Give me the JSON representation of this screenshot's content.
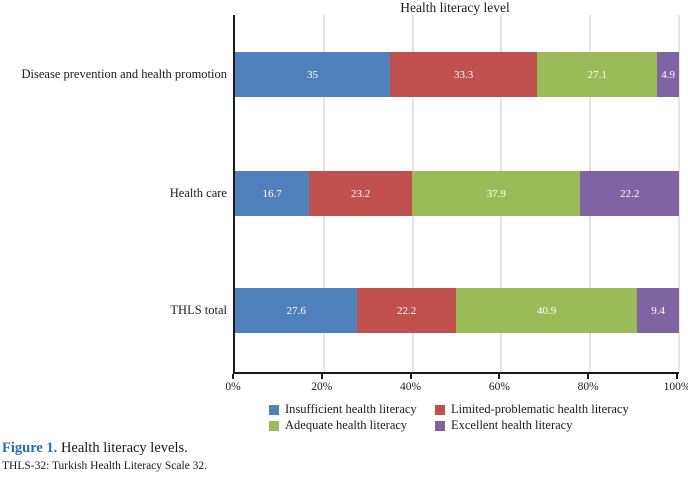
{
  "figure": {
    "caption_label": "Figure 1.",
    "caption_text": " Health literacy levels.",
    "footnote": "THLS-32: Turkish Health Literacy Scale 32."
  },
  "chart_data": {
    "type": "bar",
    "orientation": "horizontal-stacked",
    "title": "Health literacy level",
    "categories": [
      "Disease prevention and health promotion",
      "Health care",
      "THLS total"
    ],
    "series": [
      {
        "name": "Insufficient health literacy",
        "color": "#4F81BD",
        "values": [
          35,
          16.7,
          27.6
        ]
      },
      {
        "name": "Limited-problematic health literacy",
        "color": "#C0504D",
        "values": [
          33.3,
          23.2,
          22.2
        ]
      },
      {
        "name": "Adequate health literacy",
        "color": "#9BBB59",
        "values": [
          27.1,
          37.9,
          40.9
        ]
      },
      {
        "name": "Excellent health literacy",
        "color": "#8064A2",
        "values": [
          4.9,
          22.2,
          9.4
        ]
      }
    ],
    "xlim": [
      0,
      100
    ],
    "x_ticks": [
      "0%",
      "20%",
      "40%",
      "60%",
      "80%",
      "100%"
    ],
    "x_tick_values": [
      0,
      20,
      40,
      60,
      80,
      100
    ],
    "grid": "vertical",
    "legend_position": "bottom",
    "value_labels": true
  },
  "colors": {
    "axis": "#1a1a1a",
    "gridline": "#c9c9c9",
    "value_label": "#ffffff",
    "caption_label_color": "#2b6cb0"
  }
}
